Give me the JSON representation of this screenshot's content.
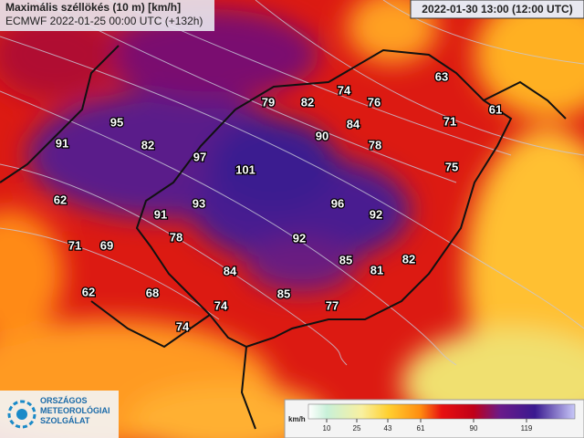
{
  "header": {
    "title": "Maximális széllökés (10 m) [km/h]",
    "subtitle": "ECMWF 2022-01-25 00:00 UTC (+132h)",
    "valid_time": "2022-01-30 13:00 (12:00 UTC)"
  },
  "logo": {
    "lines": [
      "ORSZÁGOS",
      "METEOROLÓGIAI",
      "SZOLGÁLAT"
    ]
  },
  "legend": {
    "unit": "km/h",
    "ticks": [
      10,
      25,
      43,
      61,
      90,
      119
    ]
  },
  "labels": [
    63,
    79,
    82,
    74,
    76,
    71,
    61,
    95,
    84,
    90,
    78,
    91,
    82,
    97,
    101,
    75,
    62,
    93,
    96,
    92,
    91,
    78,
    92,
    71,
    69,
    85,
    82,
    81,
    84,
    62,
    68,
    85,
    74,
    77,
    74
  ]
}
